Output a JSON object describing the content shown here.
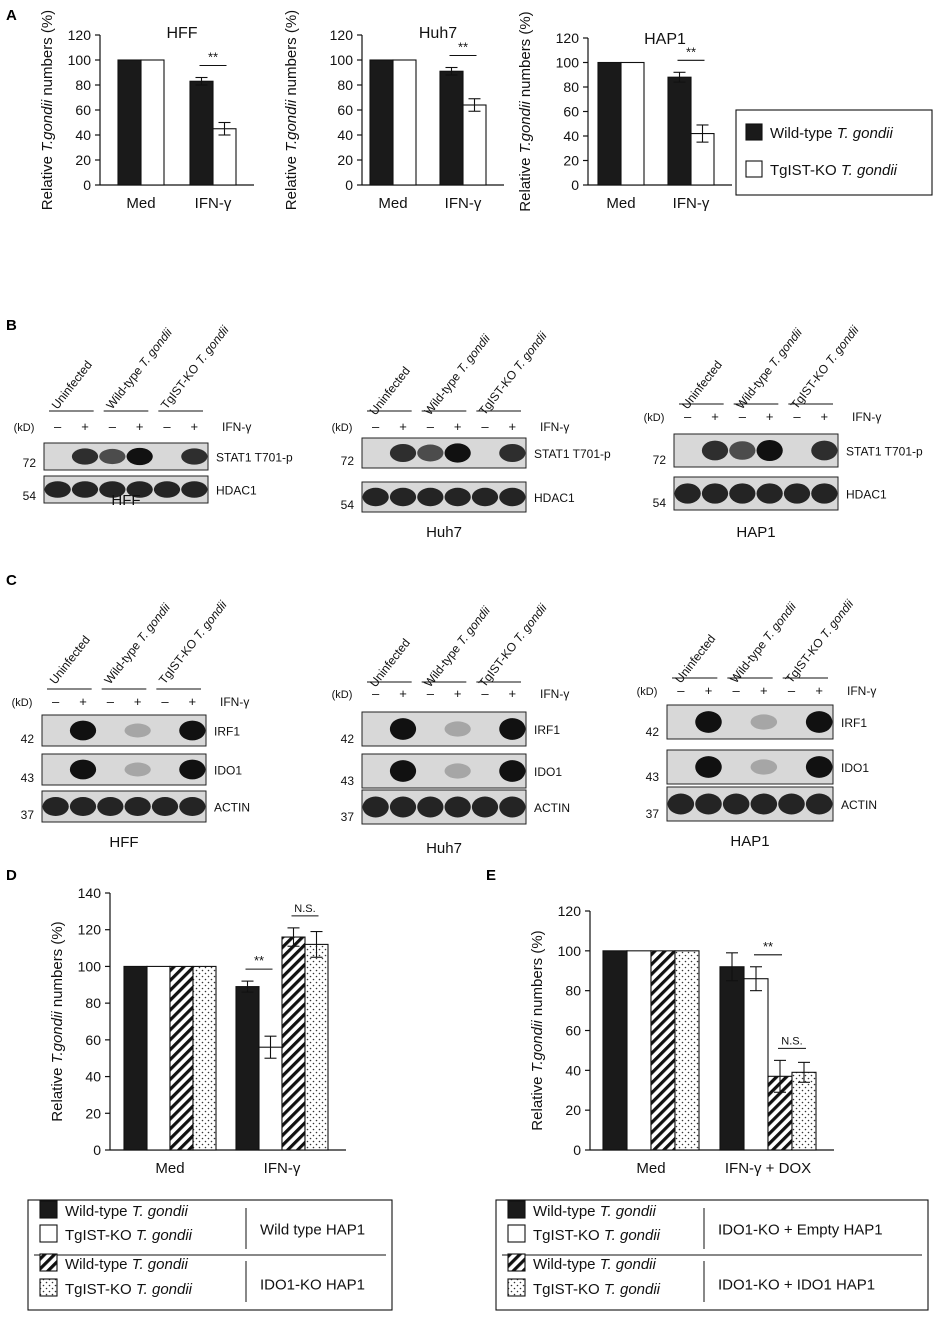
{
  "panels": {
    "A": "A",
    "B": "B",
    "C": "C",
    "D": "D",
    "E": "E"
  },
  "common": {
    "ylabel_pre": "Relative ",
    "ylabel_ital": "T.gondii",
    "ylabel_post": " numbers (%)",
    "sig": "**",
    "ns": "N.S.",
    "ifn": "IFN-γ",
    "kd": "(kD)",
    "minus": "–",
    "plus": "+"
  },
  "legend_A": {
    "items": [
      {
        "pre": "Wild-type ",
        "ital": "T. gondii",
        "fill": "#1a1a1a"
      },
      {
        "pre": "TgIST-KO ",
        "ital": "T. gondii",
        "fill": "#ffffff"
      }
    ]
  },
  "blots": {
    "groups": [
      "Uninfected",
      "Wild-type T. gondii",
      "TgIST-KO T. gondii"
    ],
    "B": [
      {
        "cell": "HFF",
        "bands": [
          "STAT1 T701-p",
          "HDAC1"
        ],
        "markers": [
          "72",
          "54"
        ]
      },
      {
        "cell": "Huh7",
        "bands": [
          "STAT1 T701-p",
          "HDAC1"
        ],
        "markers": [
          "72",
          "54"
        ]
      },
      {
        "cell": "HAP1",
        "bands": [
          "STAT1 T701-p",
          "HDAC1"
        ],
        "markers": [
          "72",
          "54"
        ]
      }
    ],
    "C": [
      {
        "cell": "HFF",
        "bands": [
          "IRF1",
          "IDO1",
          "ACTIN"
        ],
        "markers": [
          "42",
          "43",
          "37"
        ]
      },
      {
        "cell": "Huh7",
        "bands": [
          "IRF1",
          "IDO1",
          "ACTIN"
        ],
        "markers": [
          "42",
          "43",
          "37"
        ]
      },
      {
        "cell": "HAP1",
        "bands": [
          "IRF1",
          "IDO1",
          "ACTIN"
        ],
        "markers": [
          "42",
          "43",
          "37"
        ]
      }
    ]
  },
  "legend_D": {
    "rows": [
      {
        "pre": "Wild-type ",
        "ital": "T. gondii",
        "pattern": "black"
      },
      {
        "pre": "TgIST-KO ",
        "ital": "T. gondii",
        "pattern": "white"
      },
      {
        "pre": "Wild-type ",
        "ital": "T. gondii",
        "pattern": "hatch"
      },
      {
        "pre": "TgIST-KO ",
        "ital": "T. gondii",
        "pattern": "dots"
      }
    ],
    "groups": [
      "Wild type HAP1",
      "IDO1-KO HAP1"
    ]
  },
  "legend_E": {
    "rows": [
      {
        "pre": "Wild-type ",
        "ital": "T. gondii",
        "pattern": "black"
      },
      {
        "pre": "TgIST-KO ",
        "ital": "T. gondii",
        "pattern": "white"
      },
      {
        "pre": "Wild-type ",
        "ital": "T. gondii",
        "pattern": "hatch"
      },
      {
        "pre": "TgIST-KO ",
        "ital": "T. gondii",
        "pattern": "dots"
      }
    ],
    "groups": [
      "IDO1-KO + Empty HAP1",
      "IDO1-KO + IDO1 HAP1"
    ]
  },
  "chart_data": [
    {
      "type": "bar",
      "panel": "A",
      "title": "HFF",
      "categories": [
        "Med",
        "IFN-γ"
      ],
      "series": [
        {
          "name": "Wild-type T. gondii",
          "values": [
            100,
            83
          ],
          "errors": [
            0,
            3
          ]
        },
        {
          "name": "TgIST-KO T. gondii",
          "values": [
            100,
            45
          ],
          "errors": [
            0,
            5
          ]
        }
      ],
      "ylabel": "Relative T.gondii numbers (%)",
      "ylim": [
        0,
        120
      ],
      "yticks": [
        0,
        20,
        40,
        60,
        80,
        100,
        120
      ],
      "annotations": [
        {
          "text": "**",
          "group": 1
        }
      ]
    },
    {
      "type": "bar",
      "panel": "A",
      "title": "Huh7",
      "categories": [
        "Med",
        "IFN-γ"
      ],
      "series": [
        {
          "name": "Wild-type T. gondii",
          "values": [
            100,
            91
          ],
          "errors": [
            0,
            3
          ]
        },
        {
          "name": "TgIST-KO T. gondii",
          "values": [
            100,
            64
          ],
          "errors": [
            0,
            5
          ]
        }
      ],
      "ylabel": "Relative T.gondii numbers (%)",
      "ylim": [
        0,
        120
      ],
      "yticks": [
        0,
        20,
        40,
        60,
        80,
        100,
        120
      ],
      "annotations": [
        {
          "text": "**",
          "group": 1
        }
      ]
    },
    {
      "type": "bar",
      "panel": "A",
      "title": "HAP1",
      "categories": [
        "Med",
        "IFN-γ"
      ],
      "series": [
        {
          "name": "Wild-type T. gondii",
          "values": [
            100,
            88
          ],
          "errors": [
            0,
            4
          ]
        },
        {
          "name": "TgIST-KO T. gondii",
          "values": [
            100,
            42
          ],
          "errors": [
            0,
            7
          ]
        }
      ],
      "ylabel": "Relative T.gondii numbers (%)",
      "ylim": [
        0,
        120
      ],
      "yticks": [
        0,
        20,
        40,
        60,
        80,
        100,
        120
      ],
      "annotations": [
        {
          "text": "**",
          "group": 1
        }
      ]
    },
    {
      "type": "bar",
      "panel": "D",
      "categories": [
        "Med",
        "IFN-γ"
      ],
      "series": [
        {
          "name": "Wild-type T. gondii (Wild type HAP1)",
          "values": [
            100,
            89
          ],
          "errors": [
            0,
            3
          ]
        },
        {
          "name": "TgIST-KO T. gondii (Wild type HAP1)",
          "values": [
            100,
            56
          ],
          "errors": [
            0,
            6
          ]
        },
        {
          "name": "Wild-type T. gondii (IDO1-KO HAP1)",
          "values": [
            100,
            116
          ],
          "errors": [
            0,
            5
          ]
        },
        {
          "name": "TgIST-KO T. gondii (IDO1-KO HAP1)",
          "values": [
            100,
            112
          ],
          "errors": [
            0,
            7
          ]
        }
      ],
      "ylabel": "Relative T.gondii numbers (%)",
      "ylim": [
        0,
        140
      ],
      "yticks": [
        0,
        20,
        40,
        60,
        80,
        100,
        120,
        140
      ],
      "annotations": [
        {
          "text": "**",
          "group": 1,
          "pair": [
            0,
            1
          ]
        },
        {
          "text": "N.S.",
          "group": 1,
          "pair": [
            2,
            3
          ]
        }
      ]
    },
    {
      "type": "bar",
      "panel": "E",
      "categories": [
        "Med",
        "IFN-γ + DOX"
      ],
      "series": [
        {
          "name": "Wild-type T. gondii (IDO1-KO + Empty HAP1)",
          "values": [
            100,
            92
          ],
          "errors": [
            0,
            7
          ]
        },
        {
          "name": "TgIST-KO T. gondii (IDO1-KO + Empty HAP1)",
          "values": [
            100,
            86
          ],
          "errors": [
            0,
            6
          ]
        },
        {
          "name": "Wild-type T. gondii (IDO1-KO + IDO1 HAP1)",
          "values": [
            100,
            37
          ],
          "errors": [
            0,
            8
          ]
        },
        {
          "name": "TgIST-KO T. gondii (IDO1-KO + IDO1 HAP1)",
          "values": [
            100,
            39
          ],
          "errors": [
            0,
            5
          ]
        }
      ],
      "ylabel": "Relative T.gondii numbers (%)",
      "ylim": [
        0,
        120
      ],
      "yticks": [
        0,
        20,
        40,
        60,
        80,
        100,
        120
      ],
      "annotations": [
        {
          "text": "**",
          "group": 1,
          "pair": [
            1,
            2
          ]
        },
        {
          "text": "N.S.",
          "group": 1,
          "pair": [
            2,
            3
          ]
        }
      ]
    }
  ]
}
